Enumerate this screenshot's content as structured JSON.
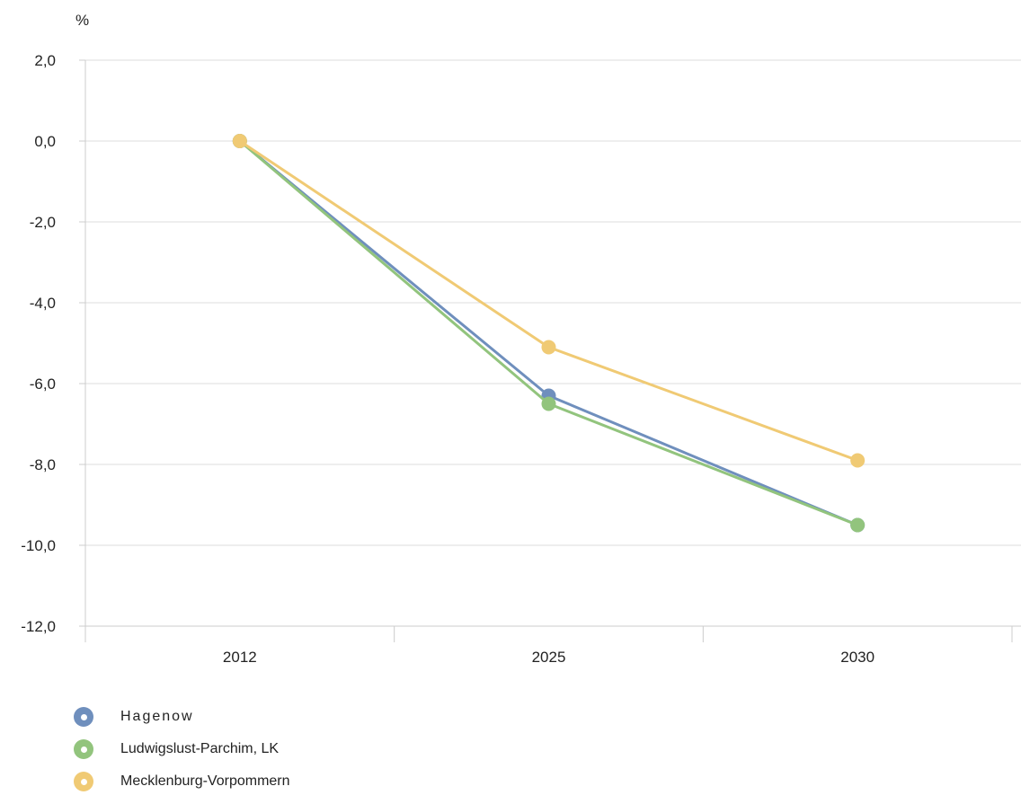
{
  "chart_data": {
    "type": "line",
    "title": "",
    "xlabel": "",
    "ylabel": "%",
    "categories": [
      "2012",
      "2025",
      "2030"
    ],
    "ylim": [
      -12,
      2
    ],
    "yticks": [
      2,
      0,
      -2,
      -4,
      -6,
      -8,
      -10,
      -12
    ],
    "ytick_labels": [
      "2,0",
      "0,0",
      "-2,0",
      "-4,0",
      "-6,0",
      "-8,0",
      "-10,0",
      "-12,0"
    ],
    "grid": true,
    "legend_position": "bottom-left",
    "series": [
      {
        "name": "Hagenow",
        "color": "#6f8fbd",
        "values": [
          0.0,
          -6.3,
          -9.5
        ]
      },
      {
        "name": "Ludwigslust-Parchim, LK",
        "color": "#92c47d",
        "values": [
          0.0,
          -6.5,
          -9.5
        ]
      },
      {
        "name": "Mecklenburg-Vorpommern",
        "color": "#f0ca74",
        "values": [
          0.0,
          -5.1,
          -7.9
        ]
      }
    ]
  }
}
